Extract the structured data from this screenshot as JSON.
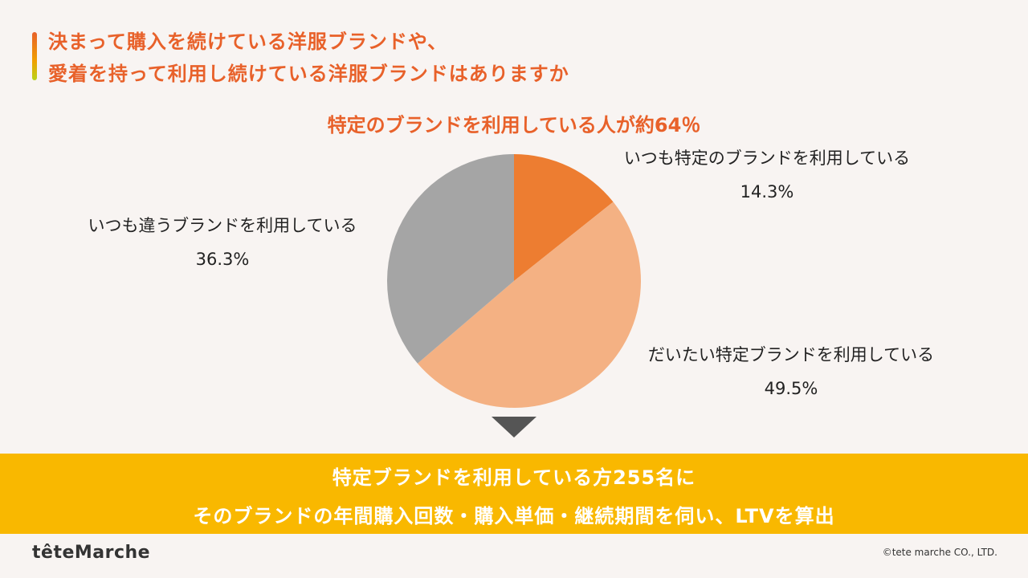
{
  "title_line1": "決まって購入を続けている洋服ブランドや、",
  "title_line2": "愛着を持って利用し続けている洋服ブランドはありますか",
  "headline": "特定のブランドを利用している人が約64％",
  "chart_data": {
    "type": "pie",
    "title": "",
    "slices": [
      {
        "label": "いつも特定のブランドを利用している",
        "value": 14.3,
        "value_label": "14.3%",
        "color": "#ed7d31"
      },
      {
        "label": "だいたい特定ブランドを利用している",
        "value": 49.5,
        "value_label": "49.5%",
        "color": "#f4b183"
      },
      {
        "label": "いつも違うブランドを利用している",
        "value": 36.3,
        "value_label": "36.3%",
        "color": "#a5a5a5"
      }
    ]
  },
  "banner_line1": "特定ブランドを利用している方255名に",
  "banner_line2": "そのブランドの年間購入回数・購入単価・継続期間を伺い、LTVを算出",
  "logo_text": "têteMarche",
  "copyright": "©tete marche CO., LTD.",
  "colors": {
    "accent": "#e8612a",
    "banner": "#f9b800",
    "background": "#f8f4f2"
  }
}
